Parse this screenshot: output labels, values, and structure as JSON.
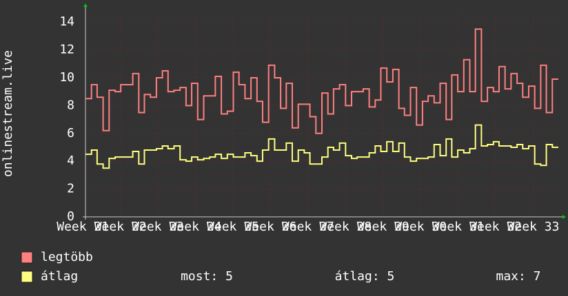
{
  "chart_data": {
    "type": "line",
    "step": true,
    "y_label": "onlinestream.live",
    "x": [
      21.07,
      21.23,
      21.38,
      21.54,
      21.7,
      21.86,
      22.01,
      22.17,
      22.33,
      22.49,
      22.64,
      22.8,
      22.96,
      23.12,
      23.27,
      23.43,
      23.59,
      23.75,
      23.9,
      24.06,
      24.22,
      24.38,
      24.53,
      24.69,
      24.85,
      25.01,
      25.16,
      25.32,
      25.48,
      25.64,
      25.79,
      25.95,
      26.11,
      26.27,
      26.42,
      26.58,
      26.74,
      26.9,
      27.05,
      27.21,
      27.37,
      27.53,
      27.68,
      27.84,
      28.0,
      28.16,
      28.31,
      28.47,
      28.63,
      28.79,
      28.94,
      29.1,
      29.26,
      29.42,
      29.57,
      29.73,
      29.89,
      30.05,
      30.2,
      30.36,
      30.52,
      30.68,
      30.83,
      30.99,
      31.15,
      31.31,
      31.46,
      31.62,
      31.78,
      31.94,
      32.09,
      32.25,
      32.41,
      32.57,
      32.72,
      32.88,
      33.04,
      33.2,
      33.35,
      33.51
    ],
    "series": [
      {
        "name": "legtöbb",
        "color": "#ff8080",
        "values": [
          8.5,
          9.5,
          8.6,
          6.2,
          9.1,
          9.0,
          9.5,
          9.5,
          10.3,
          7.5,
          8.8,
          8.6,
          10.0,
          10.5,
          9.0,
          9.1,
          9.3,
          8.0,
          9.6,
          7.0,
          8.7,
          8.7,
          10.1,
          7.4,
          7.6,
          10.4,
          9.5,
          8.5,
          10.0,
          8.3,
          6.8,
          10.9,
          10.0,
          7.8,
          9.6,
          6.4,
          8.1,
          8.1,
          7.2,
          6.0,
          8.9,
          7.4,
          9.2,
          9.5,
          8.0,
          9.0,
          9.0,
          9.2,
          7.9,
          8.4,
          10.7,
          9.7,
          10.6,
          7.8,
          7.3,
          9.3,
          6.6,
          8.3,
          8.7,
          8.2,
          9.6,
          7.0,
          10.2,
          9.0,
          11.3,
          9.0,
          13.5,
          8.3,
          9.3,
          9.0,
          10.8,
          9.2,
          10.3,
          9.6,
          8.6,
          9.4,
          7.8,
          10.9,
          7.5,
          9.9
        ]
      },
      {
        "name": "átlag",
        "color": "#ffff80",
        "values": [
          4.5,
          4.8,
          3.8,
          3.5,
          4.2,
          4.3,
          4.3,
          4.3,
          4.7,
          3.8,
          4.8,
          4.8,
          4.9,
          5.1,
          4.9,
          5.1,
          4.1,
          4.0,
          4.3,
          4.1,
          4.2,
          4.3,
          4.5,
          4.2,
          4.5,
          4.3,
          4.3,
          4.6,
          4.4,
          4.0,
          4.8,
          5.6,
          4.8,
          4.8,
          5.3,
          4.0,
          4.8,
          4.6,
          3.8,
          3.8,
          4.3,
          5.0,
          4.8,
          5.3,
          4.4,
          4.2,
          4.3,
          4.3,
          4.6,
          5.1,
          4.7,
          5.4,
          4.7,
          5.3,
          4.3,
          4.0,
          4.2,
          4.2,
          4.3,
          5.2,
          4.4,
          5.6,
          4.3,
          4.8,
          4.6,
          4.9,
          6.6,
          5.1,
          5.2,
          5.4,
          5.1,
          5.1,
          5.0,
          5.2,
          4.9,
          5.1,
          3.8,
          3.7,
          5.2,
          5.0
        ]
      }
    ],
    "xlim": [
      21.07,
      33.67
    ],
    "xticks": [
      {
        "value": 21,
        "label": "Week 21"
      },
      {
        "value": 22,
        "label": "Week 22"
      },
      {
        "value": 23,
        "label": "Week 23"
      },
      {
        "value": 24,
        "label": "Week 24"
      },
      {
        "value": 25,
        "label": "Week 25"
      },
      {
        "value": 26,
        "label": "Week 26"
      },
      {
        "value": 27,
        "label": "Week 27"
      },
      {
        "value": 28,
        "label": "Week 28"
      },
      {
        "value": 29,
        "label": "Week 29"
      },
      {
        "value": 30,
        "label": "Week 30"
      },
      {
        "value": 31,
        "label": "Week 31"
      },
      {
        "value": 32,
        "label": "Week 32"
      },
      {
        "value": 33,
        "label": "Week 33"
      }
    ],
    "ylim": [
      0,
      14.7
    ],
    "yticks": [
      0,
      2,
      4,
      6,
      8,
      10,
      12,
      14
    ],
    "y_minor_ticks": [
      1,
      3,
      5,
      7,
      9,
      11,
      13
    ],
    "grid": true,
    "stats": [
      "most: 5",
      "átlag: 5",
      "max: 7"
    ]
  }
}
